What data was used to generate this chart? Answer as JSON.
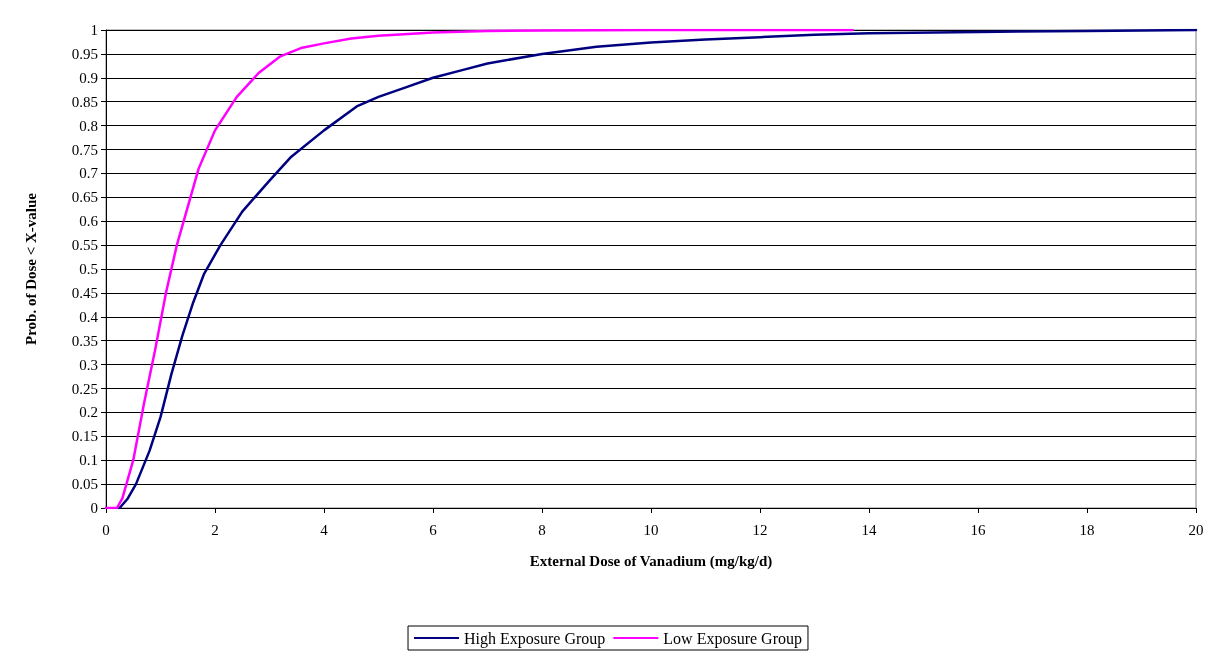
{
  "chart_data": {
    "type": "line",
    "xlabel": "External Dose of Vanadium (mg/kg/d)",
    "ylabel": "Prob. of Dose < X-value",
    "xlim": [
      0,
      20
    ],
    "xticks": [
      0,
      2,
      4,
      6,
      8,
      10,
      12,
      14,
      16,
      18,
      20
    ],
    "ylim": [
      0,
      1
    ],
    "yticks": [
      0,
      0.05,
      0.1,
      0.15,
      0.2,
      0.25,
      0.3,
      0.35,
      0.4,
      0.45,
      0.5,
      0.55,
      0.6,
      0.65,
      0.7,
      0.75,
      0.8,
      0.85,
      0.9,
      0.95,
      1
    ],
    "grid": "y",
    "legend": "bottom",
    "marker": "none",
    "line_style": "solid",
    "series": [
      {
        "name": "High Exposure Group",
        "color": "#000080",
        "x": [
          0.25,
          0.4,
          0.55,
          0.8,
          1.0,
          1.2,
          1.4,
          1.6,
          1.8,
          2.1,
          2.5,
          3,
          3.4,
          4,
          4.6,
          5,
          5.5,
          6,
          6.5,
          7,
          8,
          9,
          10,
          11,
          12,
          13,
          14,
          16,
          18,
          20
        ],
        "values": [
          0,
          0.02,
          0.05,
          0.12,
          0.19,
          0.28,
          0.36,
          0.43,
          0.49,
          0.55,
          0.62,
          0.685,
          0.735,
          0.79,
          0.84,
          0.86,
          0.88,
          0.9,
          0.915,
          0.93,
          0.95,
          0.965,
          0.974,
          0.98,
          0.985,
          0.99,
          0.993,
          0.996,
          0.998,
          1
        ]
      },
      {
        "name": "Low Exposure Group",
        "color": "#ff00ff",
        "x": [
          0,
          0.2,
          0.3,
          0.5,
          0.7,
          0.9,
          1.1,
          1.3,
          1.5,
          1.7,
          2.0,
          2.4,
          2.8,
          3.2,
          3.6,
          4,
          4.5,
          5,
          6,
          7,
          8,
          10,
          13.7
        ],
        "values": [
          0,
          0,
          0.02,
          0.1,
          0.22,
          0.33,
          0.45,
          0.55,
          0.63,
          0.71,
          0.79,
          0.86,
          0.91,
          0.945,
          0.963,
          0.972,
          0.982,
          0.988,
          0.995,
          0.998,
          0.999,
          1,
          1
        ]
      }
    ]
  }
}
